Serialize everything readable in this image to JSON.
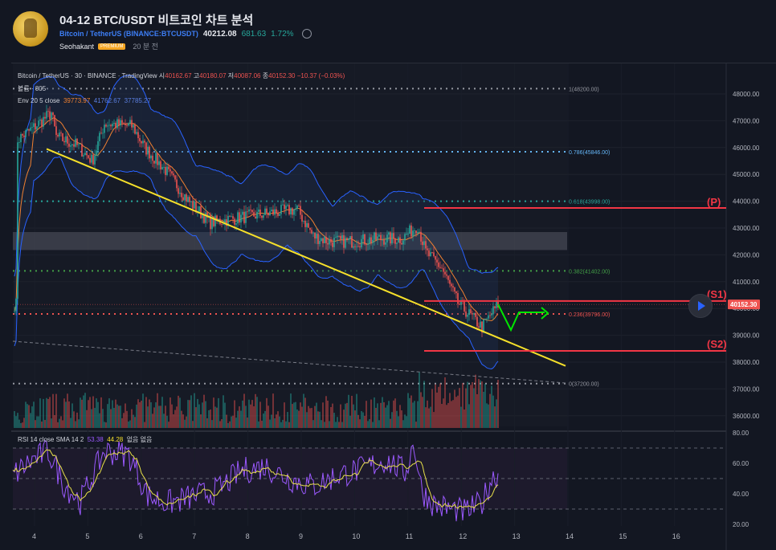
{
  "header": {
    "title": "04-12 BTC/USDT 비트코인 차트 분석",
    "symbol_name": "Bitcoin / TetherUS",
    "symbol_code": "(BINANCE:BTCUSDT)",
    "last_price": "40212.08",
    "change": "681.63",
    "change_pct": "1.72%",
    "author": "Seohakant",
    "badge": "PREMIUM",
    "posted": "20 분 전"
  },
  "legend": {
    "symbol": "Bitcoin / TetherUS · 30 · BINANCE · TradingView",
    "o_label": "시",
    "o": "40162.67",
    "h_label": "고",
    "h": "40180.07",
    "l_label": "저",
    "l": "40087.06",
    "c_label": "종",
    "c": "40152.30",
    "delta": "−10.37 (−0.03%)",
    "volume_label": "볼륨 · 805",
    "env_label": "Env 20 5 close",
    "env_basis": "39773.97",
    "env_upper": "41762.67",
    "env_lower": "37785.27",
    "rsi_label": "RSI 14 close SMA 14 2",
    "rsi_value": "53.38",
    "rsi_sma": "44.28",
    "rsi_extra": "없음 없음"
  },
  "fib_labels": [
    "1(48200.00)",
    "0.786(45846.00)",
    "0.618(43998.00)",
    "0.382(41402.00)",
    "0.236(39796.00)",
    "0(37200.00)"
  ],
  "level_labels": [
    "(P)",
    "(S1)",
    "(S2)"
  ],
  "price_axis": [
    "48000.00",
    "47000.00",
    "46000.00",
    "45000.00",
    "44000.00",
    "43000.00",
    "42000.00",
    "41000.00",
    "40000.00",
    "39000.00",
    "38000.00",
    "37000.00",
    "36000.00"
  ],
  "current_price_tag": "40152.30",
  "rsi_axis": [
    "80.00",
    "60.00",
    "40.00",
    "20.00"
  ],
  "time_axis": [
    "4",
    "5",
    "6",
    "7",
    "8",
    "9",
    "10",
    "11",
    "12",
    "13",
    "14",
    "15",
    "16"
  ],
  "colors": {
    "up": "#26a69a",
    "down": "#ef5350",
    "trendline": "#f6e02a",
    "level": "#f23645",
    "envelope": "#2962ff",
    "fib_blue": "#64b5f6",
    "fib_green": "#26a69a",
    "fib_red": "#ef5350",
    "forecast_arrow": "#00e600"
  }
}
